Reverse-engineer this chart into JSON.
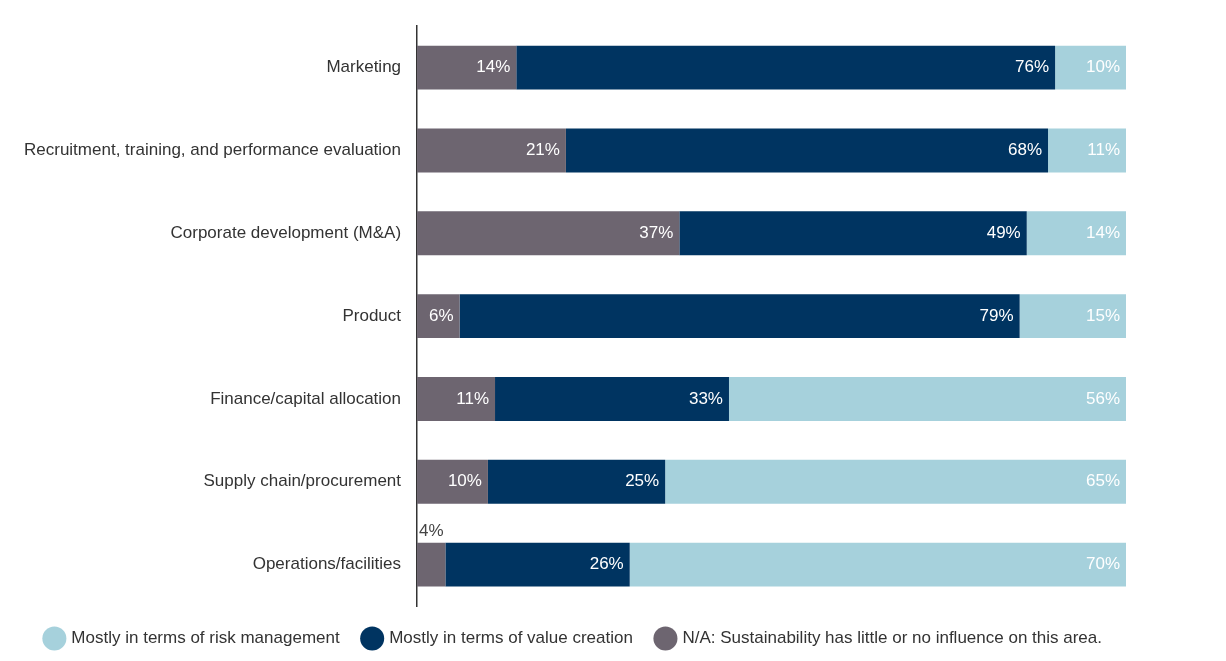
{
  "chart_data": {
    "type": "bar",
    "orientation": "horizontal",
    "stacked": true,
    "legend": "bottom",
    "categories": [
      "Marketing",
      "Recruitment, training, and performance evaluation",
      "Corporate development (M&A)",
      "Product",
      "Finance/capital allocation",
      "Supply chain/procurement",
      "Operations/facilities"
    ],
    "series": [
      {
        "name": "N/A: Sustainability has little or no influence on this area.",
        "color": "#6d6570",
        "values": [
          14,
          21,
          37,
          6,
          11,
          10,
          4
        ],
        "value_labels": [
          "14%",
          "21%",
          "37%",
          "6%",
          "11%",
          "10%",
          "4%"
        ]
      },
      {
        "name": "Mostly in terms of value creation",
        "color": "#003461",
        "values": [
          76,
          68,
          49,
          79,
          33,
          25,
          26
        ],
        "value_labels": [
          "76%",
          "68%",
          "49%",
          "79%",
          "33%",
          "25%",
          "26%"
        ]
      },
      {
        "name": "Mostly in terms of risk management",
        "color": "#a6d1dc",
        "values": [
          10,
          11,
          14,
          15,
          56,
          65,
          70
        ],
        "value_labels": [
          "10%",
          "11%",
          "14%",
          "15%",
          "56%",
          "65%",
          "70%"
        ]
      }
    ]
  }
}
